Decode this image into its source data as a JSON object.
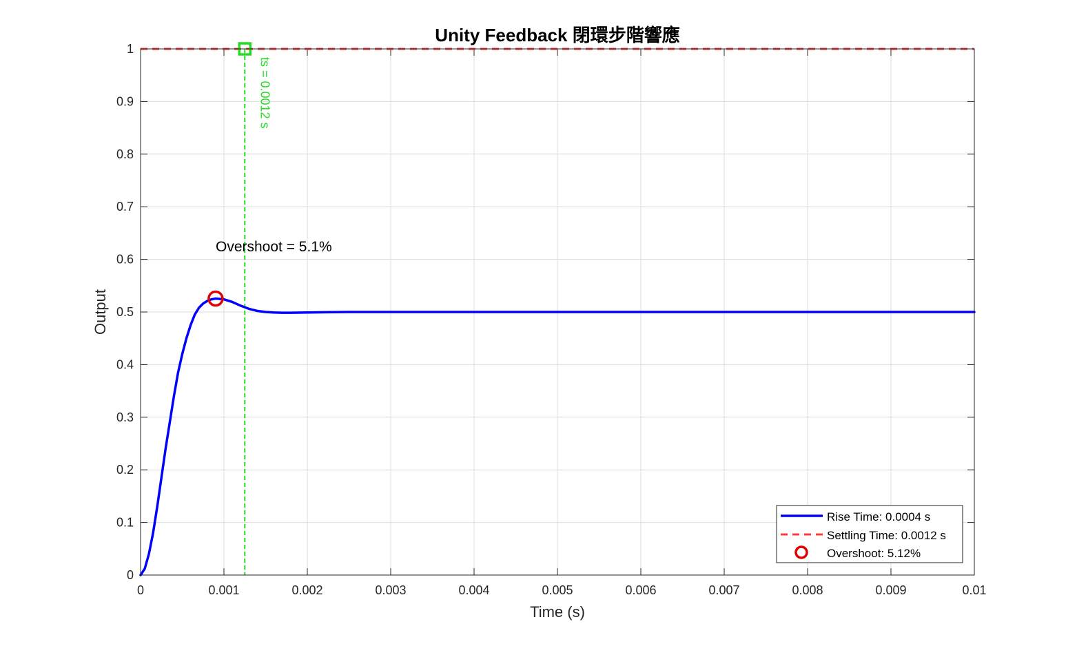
{
  "chart_data": {
    "type": "line",
    "title": "Unity Feedback 閉環步階響應",
    "xlabel": "Time (s)",
    "ylabel": "Output",
    "xlim": [
      0,
      0.01
    ],
    "ylim": [
      0,
      1
    ],
    "xticks": [
      0,
      0.001,
      0.002,
      0.003,
      0.004,
      0.005,
      0.006,
      0.007,
      0.008,
      0.009,
      0.01
    ],
    "xtick_labels": [
      "0",
      "0.001",
      "0.002",
      "0.003",
      "0.004",
      "0.005",
      "0.006",
      "0.007",
      "0.008",
      "0.009",
      "0.01"
    ],
    "yticks": [
      0,
      0.1,
      0.2,
      0.3,
      0.4,
      0.5,
      0.6,
      0.7,
      0.8,
      0.9,
      1
    ],
    "ytick_labels": [
      "0",
      "0.1",
      "0.2",
      "0.3",
      "0.4",
      "0.5",
      "0.6",
      "0.7",
      "0.8",
      "0.9",
      "1"
    ],
    "grid": true,
    "legend_position": "bottom-right",
    "series": [
      {
        "name": "Rise Time: 0.0004 s",
        "style": "solid",
        "color": "#0000ff",
        "x": [
          0,
          5e-05,
          0.0001,
          0.00015,
          0.0002,
          0.00025,
          0.0003,
          0.00035,
          0.0004,
          0.00045,
          0.0005,
          0.00055,
          0.0006,
          0.00065,
          0.0007,
          0.00075,
          0.0008,
          0.00085,
          0.0009,
          0.001,
          0.0011,
          0.0012,
          0.0013,
          0.0014,
          0.0015,
          0.0016,
          0.0017,
          0.0018,
          0.002,
          0.0022,
          0.0025,
          0.003,
          0.004,
          0.005,
          0.006,
          0.007,
          0.008,
          0.009,
          0.01
        ],
        "y": [
          0,
          0.012,
          0.04,
          0.08,
          0.13,
          0.185,
          0.24,
          0.29,
          0.34,
          0.385,
          0.42,
          0.45,
          0.475,
          0.495,
          0.508,
          0.516,
          0.521,
          0.524,
          0.5255,
          0.524,
          0.519,
          0.512,
          0.506,
          0.502,
          0.5,
          0.499,
          0.4985,
          0.4985,
          0.499,
          0.4995,
          0.5,
          0.5,
          0.5,
          0.5,
          0.5,
          0.5,
          0.5,
          0.5,
          0.5
        ]
      },
      {
        "name": "Settling Time: 0.0012 s",
        "style": "dashed",
        "color": "#ff3b3b",
        "x": [
          0,
          0.01
        ],
        "y": [
          1,
          1
        ]
      },
      {
        "name": "Overshoot: 5.12%",
        "style": "marker-circle",
        "color": "#e00000",
        "x": [
          0.0009
        ],
        "y": [
          0.5255
        ]
      }
    ],
    "settling_line": {
      "x": 0.00125,
      "color": "#22dd22",
      "marker_y": 1
    },
    "annotations": {
      "overshoot_text": "Overshoot = 5.1%",
      "ts_text": "ts = 0.0012 s"
    }
  }
}
